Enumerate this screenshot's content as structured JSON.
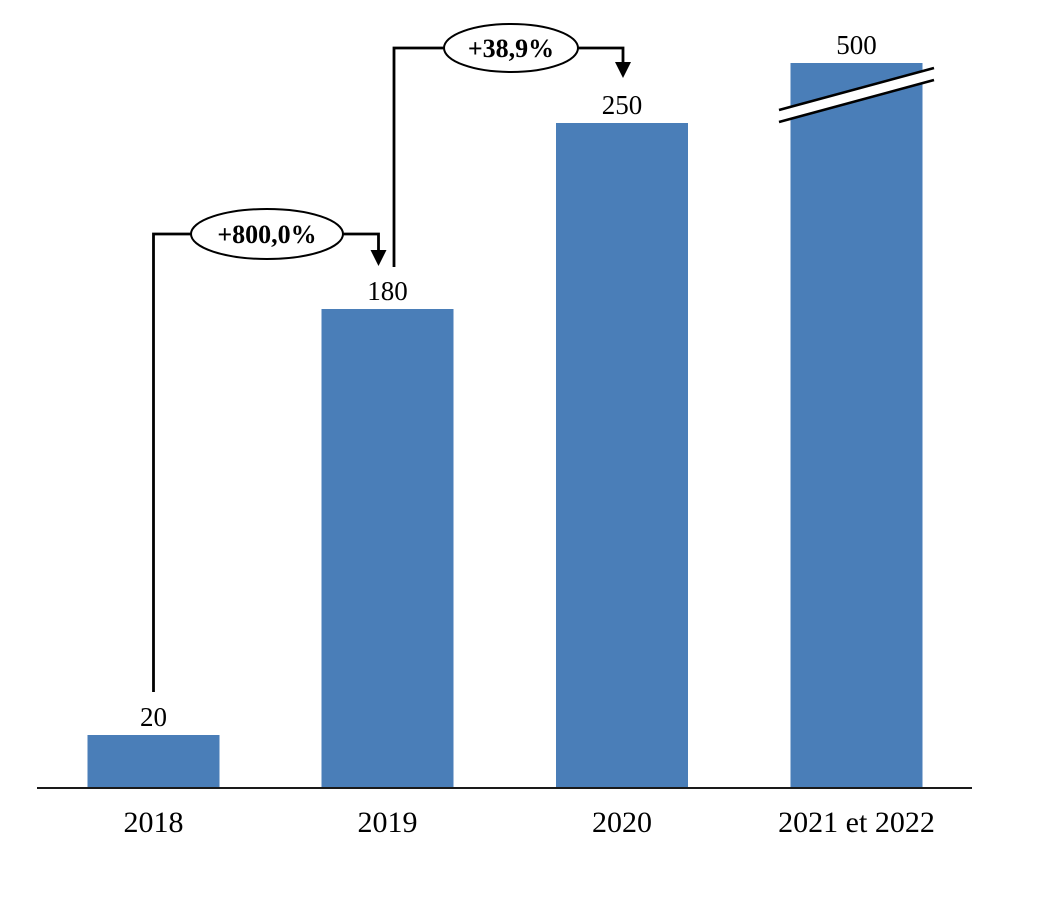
{
  "chart_data": {
    "type": "bar",
    "categories": [
      "2018",
      "2019",
      "2020",
      "2021 et 2022"
    ],
    "values": [
      20,
      180,
      250,
      500
    ],
    "value_labels": [
      "20",
      "180",
      "250",
      "500"
    ],
    "title": "",
    "xlabel": "",
    "ylabel": "",
    "legend": false,
    "grid": false,
    "bar_color": "#4a7eb8",
    "axis_color": "#1a1a1a",
    "annotation_color": "#000000",
    "axis_break": {
      "category": "2021 et 2022",
      "note": "last bar truncated, shown with double diagonal break marks"
    },
    "annotations": [
      {
        "label": "+800,0%",
        "from_category": "2018",
        "to_category": "2019"
      },
      {
        "label": "+38,9%",
        "from_category": "2019",
        "to_category": "2020"
      }
    ]
  }
}
